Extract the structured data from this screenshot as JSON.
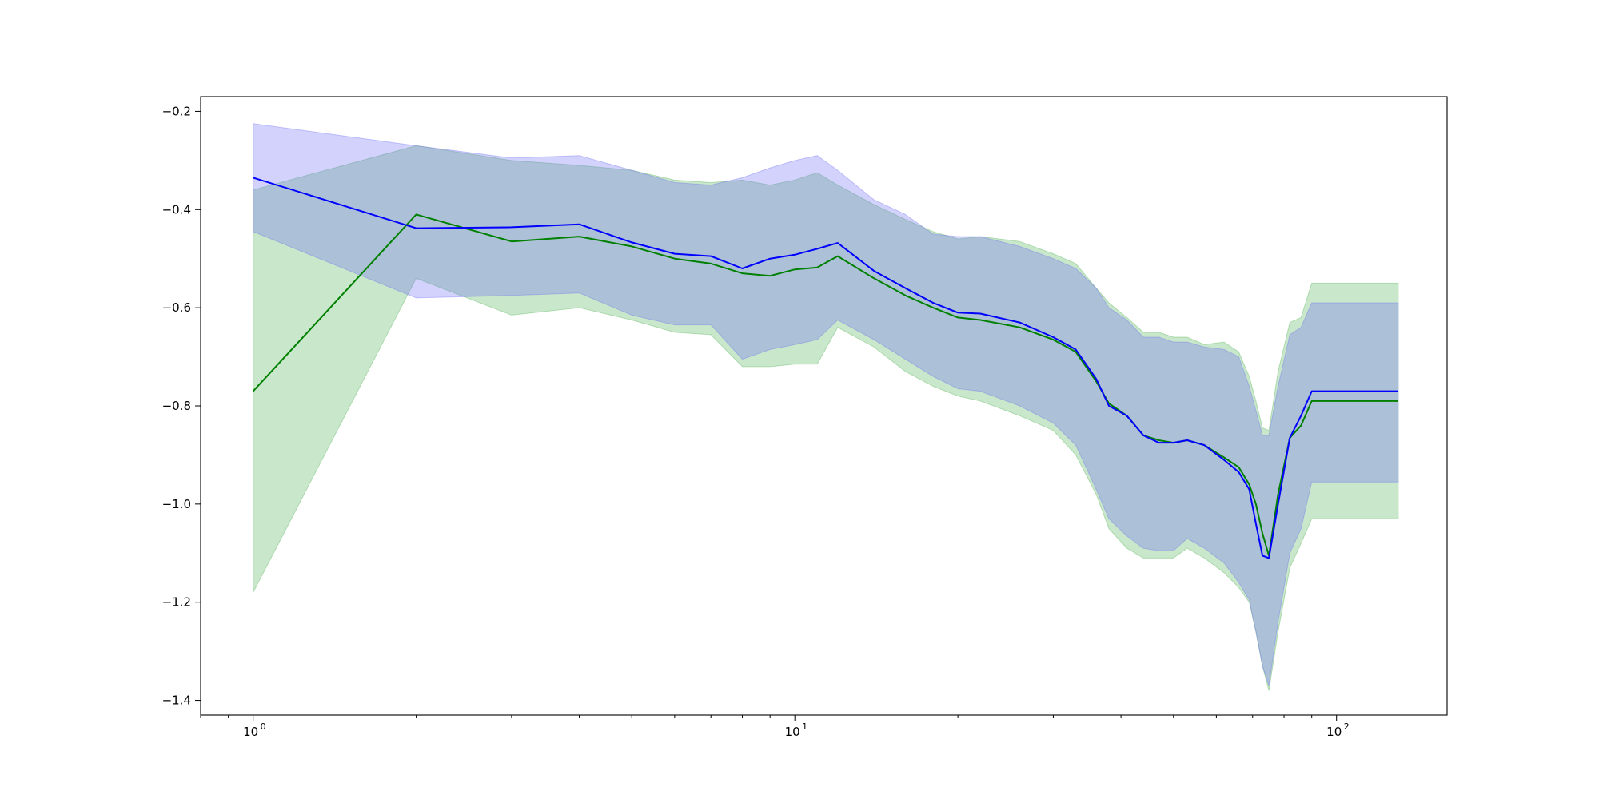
{
  "chart_data": {
    "type": "line",
    "xscale": "log",
    "xlim": [
      0.8,
      160
    ],
    "ylim": [
      -1.43,
      -0.17
    ],
    "grid": false,
    "legend": "none",
    "x_ticks": [
      {
        "value": 1,
        "label": "10",
        "exp": "0"
      },
      {
        "value": 10,
        "label": "10",
        "exp": "1"
      },
      {
        "value": 100,
        "label": "10",
        "exp": "2"
      }
    ],
    "y_ticks": [
      {
        "value": -0.2,
        "label": "−0.2"
      },
      {
        "value": -0.4,
        "label": "−0.4"
      },
      {
        "value": -0.6,
        "label": "−0.6"
      },
      {
        "value": -0.8,
        "label": "−0.8"
      },
      {
        "value": -1.0,
        "label": "−1.0"
      },
      {
        "value": -1.2,
        "label": "−1.2"
      },
      {
        "value": -1.4,
        "label": "−1.4"
      }
    ],
    "series": [
      {
        "color": "#008000",
        "band_color": "#4caf50",
        "x": [
          1,
          2,
          3,
          4,
          5,
          6,
          7,
          8,
          9,
          10,
          11,
          12,
          14,
          16,
          18,
          20,
          22,
          26,
          30,
          33,
          36,
          38,
          41,
          44,
          47,
          50,
          53,
          57,
          62,
          66,
          69,
          71,
          73,
          75,
          78,
          82,
          86,
          90,
          130
        ],
        "mean": [
          -0.77,
          -0.41,
          -0.465,
          -0.455,
          -0.475,
          -0.5,
          -0.51,
          -0.53,
          -0.535,
          -0.522,
          -0.518,
          -0.495,
          -0.54,
          -0.575,
          -0.6,
          -0.62,
          -0.625,
          -0.64,
          -0.665,
          -0.69,
          -0.75,
          -0.795,
          -0.82,
          -0.86,
          -0.87,
          -0.875,
          -0.87,
          -0.88,
          -0.905,
          -0.925,
          -0.96,
          -1.0,
          -1.06,
          -1.105,
          -0.98,
          -0.865,
          -0.84,
          -0.79,
          -0.79
        ],
        "upper": [
          -0.36,
          -0.27,
          -0.3,
          -0.31,
          -0.32,
          -0.34,
          -0.345,
          -0.34,
          -0.35,
          -0.34,
          -0.325,
          -0.35,
          -0.39,
          -0.42,
          -0.445,
          -0.46,
          -0.455,
          -0.465,
          -0.49,
          -0.51,
          -0.56,
          -0.59,
          -0.62,
          -0.65,
          -0.65,
          -0.66,
          -0.66,
          -0.675,
          -0.67,
          -0.69,
          -0.74,
          -0.79,
          -0.845,
          -0.85,
          -0.73,
          -0.63,
          -0.62,
          -0.55,
          -0.55
        ],
        "lower": [
          -1.18,
          -0.54,
          -0.615,
          -0.6,
          -0.625,
          -0.65,
          -0.655,
          -0.72,
          -0.72,
          -0.715,
          -0.715,
          -0.64,
          -0.68,
          -0.73,
          -0.76,
          -0.78,
          -0.79,
          -0.82,
          -0.85,
          -0.9,
          -0.98,
          -1.05,
          -1.09,
          -1.11,
          -1.11,
          -1.11,
          -1.09,
          -1.11,
          -1.14,
          -1.17,
          -1.2,
          -1.26,
          -1.33,
          -1.38,
          -1.26,
          -1.13,
          -1.08,
          -1.03,
          -1.03
        ]
      },
      {
        "color": "#0000ff",
        "band_color": "#6a6af5",
        "x": [
          1,
          2,
          3,
          4,
          5,
          6,
          7,
          8,
          9,
          10,
          11,
          12,
          14,
          16,
          18,
          20,
          22,
          26,
          30,
          33,
          36,
          38,
          41,
          44,
          47,
          50,
          53,
          57,
          62,
          66,
          69,
          71,
          73,
          75,
          78,
          82,
          86,
          90,
          130
        ],
        "mean": [
          -0.335,
          -0.438,
          -0.436,
          -0.43,
          -0.467,
          -0.49,
          -0.495,
          -0.52,
          -0.5,
          -0.492,
          -0.48,
          -0.468,
          -0.525,
          -0.56,
          -0.59,
          -0.61,
          -0.612,
          -0.63,
          -0.66,
          -0.685,
          -0.745,
          -0.8,
          -0.82,
          -0.86,
          -0.875,
          -0.875,
          -0.87,
          -0.88,
          -0.91,
          -0.935,
          -0.97,
          -1.04,
          -1.105,
          -1.11,
          -1.0,
          -0.865,
          -0.82,
          -0.77,
          -0.77
        ],
        "upper": [
          -0.225,
          -0.27,
          -0.295,
          -0.29,
          -0.32,
          -0.345,
          -0.35,
          -0.335,
          -0.315,
          -0.3,
          -0.29,
          -0.32,
          -0.38,
          -0.41,
          -0.45,
          -0.455,
          -0.455,
          -0.475,
          -0.5,
          -0.52,
          -0.56,
          -0.6,
          -0.625,
          -0.66,
          -0.66,
          -0.67,
          -0.67,
          -0.68,
          -0.685,
          -0.7,
          -0.76,
          -0.81,
          -0.86,
          -0.86,
          -0.76,
          -0.655,
          -0.64,
          -0.59,
          -0.59
        ],
        "lower": [
          -0.445,
          -0.58,
          -0.575,
          -0.57,
          -0.615,
          -0.635,
          -0.635,
          -0.705,
          -0.685,
          -0.675,
          -0.665,
          -0.625,
          -0.665,
          -0.705,
          -0.74,
          -0.765,
          -0.77,
          -0.8,
          -0.835,
          -0.88,
          -0.97,
          -1.03,
          -1.065,
          -1.09,
          -1.095,
          -1.095,
          -1.07,
          -1.09,
          -1.12,
          -1.16,
          -1.195,
          -1.26,
          -1.33,
          -1.37,
          -1.24,
          -1.1,
          -1.05,
          -0.955,
          -0.955
        ]
      }
    ]
  }
}
